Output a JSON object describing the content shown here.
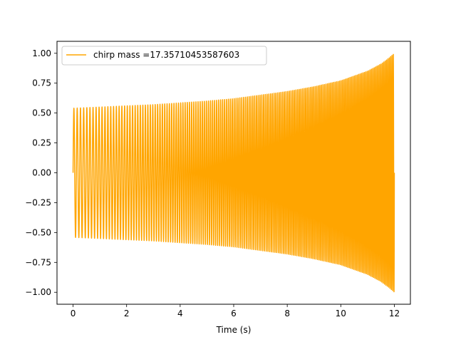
{
  "chart_data": {
    "type": "line",
    "title": "",
    "xlabel": "Time (s)",
    "ylabel": "",
    "xlim": [
      -0.6,
      12.6
    ],
    "ylim": [
      -1.1,
      1.1
    ],
    "x_ticks": [
      0,
      2,
      4,
      6,
      8,
      10,
      12
    ],
    "x_tick_labels": [
      "0",
      "2",
      "4",
      "6",
      "8",
      "10",
      "12"
    ],
    "y_ticks": [
      -1.0,
      -0.75,
      -0.5,
      -0.25,
      0.0,
      0.25,
      0.5,
      0.75,
      1.0
    ],
    "y_tick_labels": [
      "−1.00",
      "−0.75",
      "−0.50",
      "−0.25",
      "0.00",
      "0.25",
      "0.50",
      "0.75",
      "1.00"
    ],
    "grid": false,
    "legend_position": "top-left",
    "series": [
      {
        "name": "chirp mass =17.35710453587603",
        "color": "#FFA500",
        "t_start": 0.0,
        "t_end": 12.0,
        "envelope": {
          "t": [
            0,
            1,
            2,
            3,
            4,
            5,
            6,
            7,
            8,
            9,
            10,
            11,
            11.5,
            11.8,
            12.0
          ],
          "amplitude": [
            0.54,
            0.55,
            0.56,
            0.57,
            0.585,
            0.6,
            0.62,
            0.65,
            0.68,
            0.72,
            0.77,
            0.85,
            0.91,
            0.96,
            1.0
          ]
        },
        "frequency_hz": {
          "start": 8,
          "end": 20
        }
      }
    ]
  }
}
